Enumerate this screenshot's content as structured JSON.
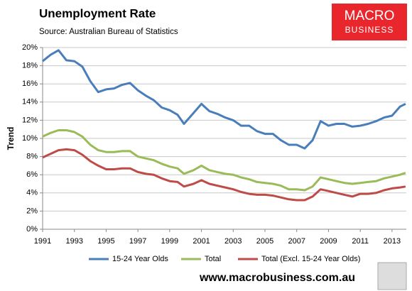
{
  "chart_data": {
    "type": "line",
    "title": "Unemployment Rate",
    "subtitle": "Source: Australian Bureau of Statistics",
    "logo": [
      "MACRO",
      "BUSINESS"
    ],
    "ylabel": "Trend",
    "footer": "www.macrobusiness.com.au",
    "x": [
      1991,
      1991.5,
      1992,
      1992.5,
      1993,
      1993.5,
      1994,
      1994.5,
      1995,
      1995.5,
      1996,
      1996.5,
      1997,
      1997.5,
      1998,
      1998.5,
      1999,
      1999.5,
      1999.9,
      2000.5,
      2001,
      2001.5,
      2002,
      2002.5,
      2003,
      2003.5,
      2004,
      2004.5,
      2005,
      2005.5,
      2006,
      2006.5,
      2007,
      2007.5,
      2008,
      2008.5,
      2009,
      2009.5,
      2010,
      2010.5,
      2011,
      2011.5,
      2012,
      2012.5,
      2013,
      2013.5,
      2013.85
    ],
    "series": [
      {
        "name": "15-24 Year Olds",
        "color": "#4a7ebb",
        "values": [
          18.5,
          19.2,
          19.7,
          18.6,
          18.5,
          17.9,
          16.3,
          15.1,
          15.4,
          15.5,
          15.9,
          16.1,
          15.3,
          14.7,
          14.2,
          13.4,
          13.1,
          12.6,
          11.6,
          12.8,
          13.8,
          13.0,
          12.7,
          12.3,
          12.0,
          11.4,
          11.4,
          10.8,
          10.5,
          10.5,
          9.8,
          9.3,
          9.3,
          8.9,
          9.8,
          11.9,
          11.4,
          11.6,
          11.6,
          11.3,
          11.4,
          11.6,
          11.9,
          12.3,
          12.5,
          13.5,
          13.8
        ]
      },
      {
        "name": "Total",
        "color": "#9bbb59",
        "values": [
          10.2,
          10.6,
          10.9,
          10.9,
          10.7,
          10.2,
          9.3,
          8.7,
          8.5,
          8.5,
          8.6,
          8.6,
          8.0,
          7.8,
          7.6,
          7.2,
          6.9,
          6.7,
          6.1,
          6.5,
          7.0,
          6.5,
          6.3,
          6.1,
          6.0,
          5.7,
          5.5,
          5.2,
          5.1,
          5.0,
          4.8,
          4.4,
          4.4,
          4.3,
          4.7,
          5.7,
          5.5,
          5.3,
          5.1,
          5.0,
          5.1,
          5.2,
          5.3,
          5.6,
          5.8,
          6.0,
          6.2
        ]
      },
      {
        "name": "Total (Excl. 15-24 Year Olds)",
        "color": "#be4b48",
        "values": [
          7.9,
          8.3,
          8.7,
          8.8,
          8.7,
          8.2,
          7.5,
          7.0,
          6.6,
          6.6,
          6.7,
          6.7,
          6.3,
          6.1,
          6.0,
          5.6,
          5.3,
          5.2,
          4.7,
          5.0,
          5.4,
          5.0,
          4.8,
          4.6,
          4.4,
          4.1,
          3.9,
          3.8,
          3.8,
          3.7,
          3.5,
          3.3,
          3.2,
          3.2,
          3.6,
          4.4,
          4.2,
          4.0,
          3.8,
          3.6,
          3.9,
          3.9,
          4.0,
          4.3,
          4.5,
          4.6,
          4.7
        ]
      }
    ],
    "xlim": [
      1991,
      2013.9
    ],
    "xticks": [
      1991,
      1993,
      1995,
      1997,
      1999,
      2001,
      2003,
      2005,
      2007,
      2009,
      2011,
      2013
    ],
    "ylim": [
      0,
      20
    ],
    "yticks": [
      {
        "value": 0,
        "label": "0%"
      },
      {
        "value": 2,
        "label": "2%"
      },
      {
        "value": 4,
        "label": "4%"
      },
      {
        "value": 6,
        "label": "6%"
      },
      {
        "value": 8,
        "label": "8%"
      },
      {
        "value": 10,
        "label": "10%"
      },
      {
        "value": 12,
        "label": "12%"
      },
      {
        "value": 14,
        "label": "14%"
      },
      {
        "value": 16,
        "label": "16%"
      },
      {
        "value": 18,
        "label": "18%"
      },
      {
        "value": 20,
        "label": "20%"
      }
    ],
    "grid": true,
    "legend": "bottom"
  }
}
